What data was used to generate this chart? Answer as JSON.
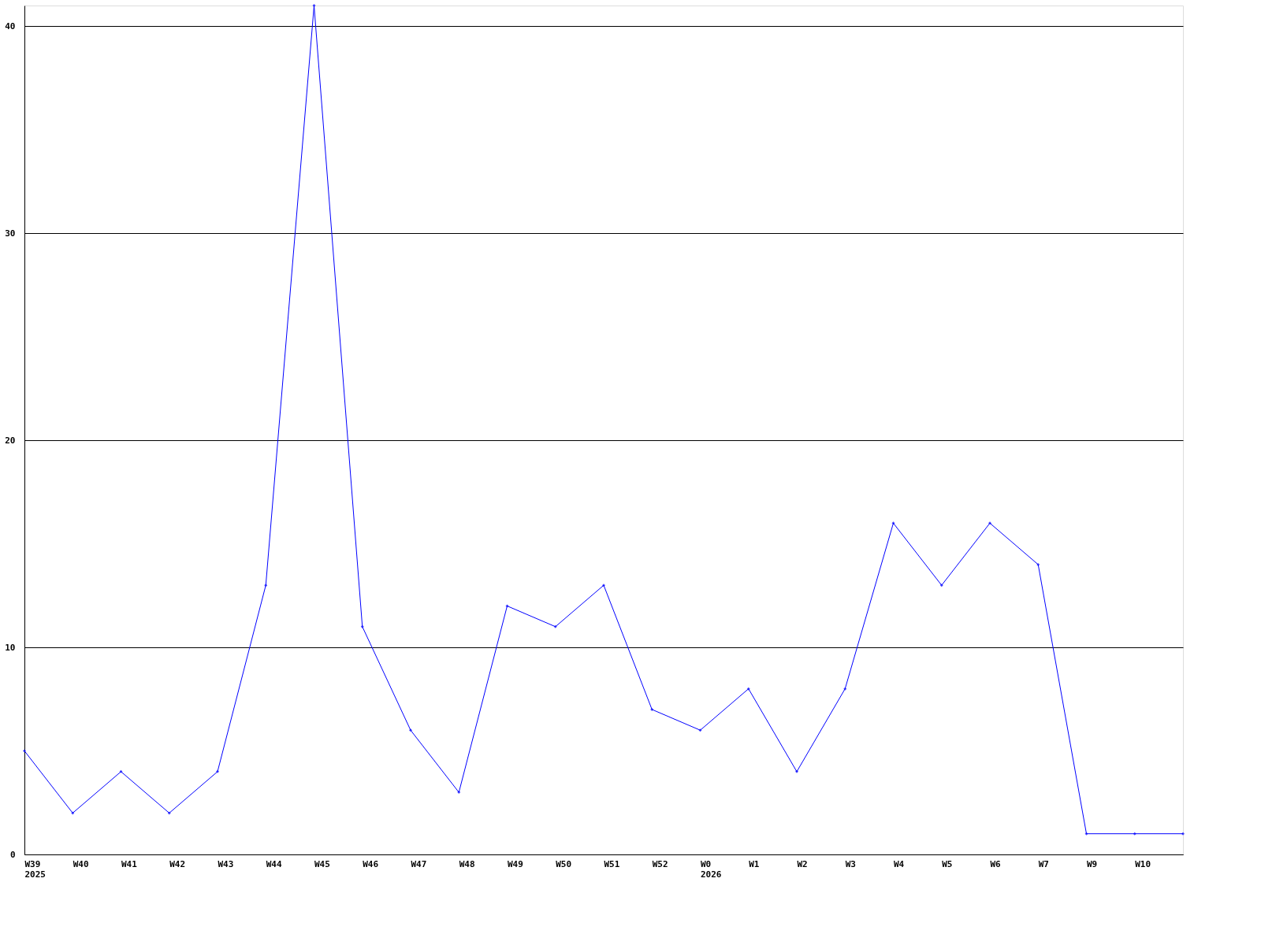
{
  "chart_data": {
    "type": "line",
    "categories": [
      "W39\n2025",
      "W40",
      "W41",
      "W42",
      "W43",
      "W44",
      "W45",
      "W46",
      "W47",
      "W48",
      "W49",
      "W50",
      "W51",
      "W52",
      "W0\n2026",
      "W1",
      "W2",
      "W3",
      "W4",
      "W5",
      "W6",
      "W7",
      "W9",
      "W10",
      null
    ],
    "series": [
      {
        "color": "#0000ff",
        "values": [
          5,
          2,
          4,
          2,
          4,
          13,
          41,
          11,
          6,
          3,
          12,
          11,
          13,
          7,
          6,
          8,
          4,
          8,
          16,
          13,
          16,
          14,
          1,
          1,
          1
        ]
      }
    ],
    "ylim": [
      0,
      41
    ],
    "yticks": [
      0,
      10,
      20,
      30,
      40
    ],
    "grid": "y",
    "marker": "diamond",
    "legend": false
  }
}
